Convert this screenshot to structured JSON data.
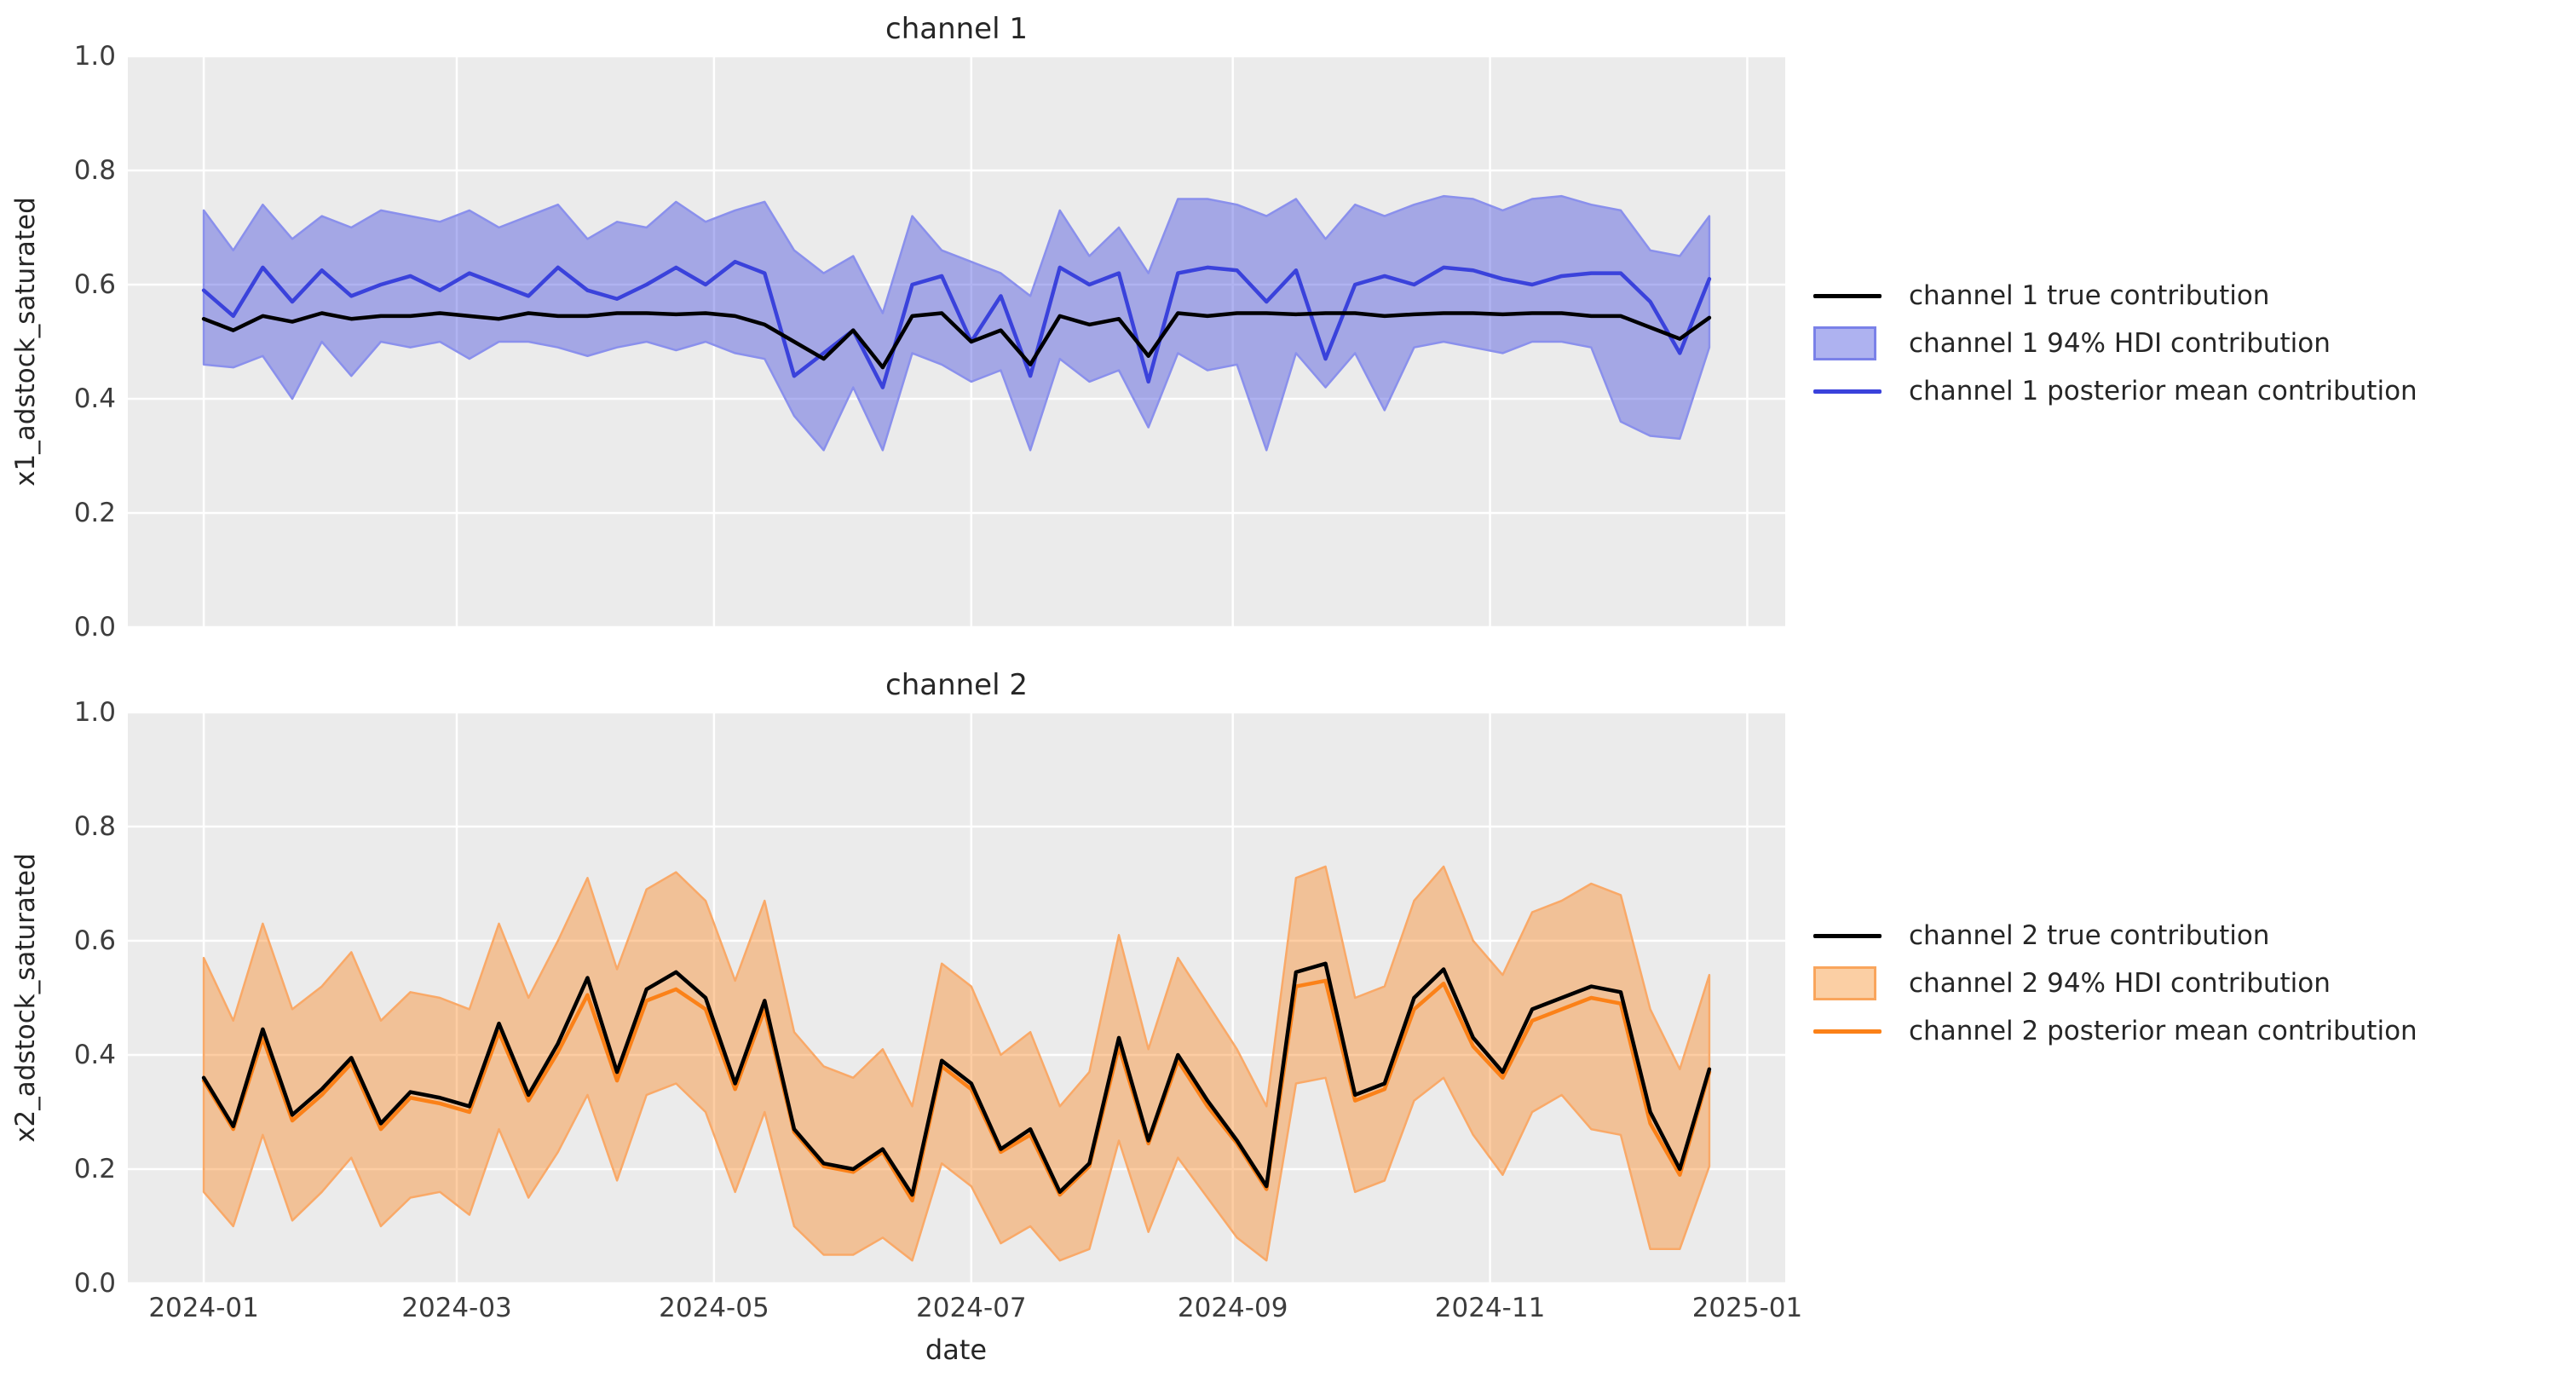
{
  "figure": {
    "background": "#ffffff",
    "panel_background": "#ebebeb",
    "grid_color": "#ffffff",
    "tick_color": "#3d3d3d",
    "text_color": "#262626"
  },
  "xaxis": {
    "label": "date",
    "tick_labels": [
      "2024-01",
      "2024-03",
      "2024-05",
      "2024-07",
      "2024-09",
      "2024-11",
      "2025-01"
    ],
    "tick_days": [
      0,
      60,
      121,
      182,
      244,
      305,
      366
    ],
    "xlim_days": [
      -18,
      375
    ]
  },
  "chart_data": [
    {
      "type": "line",
      "title": "channel 1",
      "ylabel": "x1_adstock_saturated",
      "xlabel": "",
      "ylim": [
        0,
        1
      ],
      "grid": true,
      "legend_position": "right",
      "yticks": {
        "values": [
          0.0,
          0.2,
          0.4,
          0.6,
          0.8,
          1.0
        ],
        "labels": [
          "0.0",
          "0.2",
          "0.4",
          "0.6",
          "0.8",
          "1.0"
        ]
      },
      "x_start_date": "2024-01-01",
      "x_interval_days": 7,
      "n_points": 52,
      "legend": [
        {
          "label": "channel 1 true contribution",
          "marker": "line",
          "color": "#000000"
        },
        {
          "label": "channel 1 94% HDI contribution",
          "marker": "patch",
          "color": "#aeb2f0"
        },
        {
          "label": "channel 1 posterior mean contribution",
          "marker": "line",
          "color": "#3a42db"
        }
      ],
      "colors": {
        "true_line": "#000000",
        "mean_line": "#3a42db",
        "band_fill": "rgba(58,66,219,0.40)",
        "band_edge": "#8a90ec",
        "legend_patch_fill": "#aeb2f0",
        "legend_patch_border": "#7a81e8"
      },
      "series": [
        {
          "name": "true",
          "values": [
            0.54,
            0.52,
            0.545,
            0.535,
            0.55,
            0.54,
            0.545,
            0.545,
            0.55,
            0.545,
            0.54,
            0.55,
            0.545,
            0.545,
            0.55,
            0.55,
            0.548,
            0.55,
            0.545,
            0.53,
            0.5,
            0.47,
            0.52,
            0.455,
            0.545,
            0.55,
            0.5,
            0.52,
            0.46,
            0.545,
            0.53,
            0.54,
            0.475,
            0.55,
            0.545,
            0.55,
            0.55,
            0.548,
            0.55,
            0.55,
            0.545,
            0.548,
            0.55,
            0.55,
            0.548,
            0.55,
            0.55,
            0.545,
            0.545,
            0.525,
            0.505,
            0.542
          ]
        },
        {
          "name": "posterior_mean",
          "values": [
            0.59,
            0.545,
            0.63,
            0.57,
            0.625,
            0.58,
            0.6,
            0.615,
            0.59,
            0.62,
            0.6,
            0.58,
            0.63,
            0.59,
            0.575,
            0.6,
            0.63,
            0.6,
            0.64,
            0.62,
            0.44,
            0.48,
            0.52,
            0.42,
            0.6,
            0.615,
            0.5,
            0.58,
            0.44,
            0.63,
            0.6,
            0.62,
            0.43,
            0.62,
            0.63,
            0.625,
            0.57,
            0.625,
            0.47,
            0.6,
            0.615,
            0.6,
            0.63,
            0.625,
            0.61,
            0.6,
            0.615,
            0.62,
            0.62,
            0.57,
            0.48,
            0.61
          ]
        },
        {
          "name": "hdi_94_upper",
          "values": [
            0.73,
            0.66,
            0.74,
            0.68,
            0.72,
            0.7,
            0.73,
            0.72,
            0.71,
            0.73,
            0.7,
            0.72,
            0.74,
            0.68,
            0.71,
            0.7,
            0.745,
            0.71,
            0.73,
            0.745,
            0.66,
            0.62,
            0.65,
            0.55,
            0.72,
            0.66,
            0.64,
            0.62,
            0.58,
            0.73,
            0.65,
            0.7,
            0.62,
            0.75,
            0.75,
            0.74,
            0.72,
            0.75,
            0.68,
            0.74,
            0.72,
            0.74,
            0.755,
            0.75,
            0.73,
            0.75,
            0.755,
            0.74,
            0.73,
            0.66,
            0.65,
            0.72
          ]
        },
        {
          "name": "hdi_94_lower",
          "values": [
            0.46,
            0.455,
            0.475,
            0.4,
            0.5,
            0.44,
            0.5,
            0.49,
            0.5,
            0.47,
            0.5,
            0.5,
            0.49,
            0.475,
            0.49,
            0.5,
            0.485,
            0.5,
            0.48,
            0.47,
            0.37,
            0.31,
            0.42,
            0.31,
            0.48,
            0.46,
            0.43,
            0.45,
            0.31,
            0.47,
            0.43,
            0.45,
            0.35,
            0.48,
            0.45,
            0.46,
            0.31,
            0.48,
            0.42,
            0.48,
            0.38,
            0.49,
            0.5,
            0.49,
            0.48,
            0.5,
            0.5,
            0.49,
            0.36,
            0.335,
            0.33,
            0.49
          ]
        }
      ]
    },
    {
      "type": "line",
      "title": "channel 2",
      "ylabel": "x2_adstock_saturated",
      "xlabel": "date",
      "ylim": [
        0,
        1
      ],
      "grid": true,
      "legend_position": "right",
      "yticks": {
        "values": [
          0.0,
          0.2,
          0.4,
          0.6,
          0.8,
          1.0
        ],
        "labels": [
          "0.0",
          "0.2",
          "0.4",
          "0.6",
          "0.8",
          "1.0"
        ]
      },
      "x_start_date": "2024-01-01",
      "x_interval_days": 7,
      "n_points": 52,
      "legend": [
        {
          "label": "channel 2 true contribution",
          "marker": "line",
          "color": "#000000"
        },
        {
          "label": "channel 2 94% HDI contribution",
          "marker": "patch",
          "color": "#fbcfa4"
        },
        {
          "label": "channel 2 posterior mean contribution",
          "marker": "line",
          "color": "#fb8118"
        }
      ],
      "colors": {
        "true_line": "#000000",
        "mean_line": "#fb8118",
        "band_fill": "rgba(251,129,24,0.40)",
        "band_edge": "#f9a968",
        "legend_patch_fill": "#fbcfa4",
        "legend_patch_border": "#f9a55c"
      },
      "series": [
        {
          "name": "true",
          "values": [
            0.36,
            0.275,
            0.445,
            0.295,
            0.34,
            0.395,
            0.28,
            0.335,
            0.325,
            0.31,
            0.455,
            0.33,
            0.42,
            0.535,
            0.37,
            0.515,
            0.545,
            0.5,
            0.35,
            0.495,
            0.27,
            0.21,
            0.2,
            0.235,
            0.155,
            0.39,
            0.35,
            0.235,
            0.27,
            0.16,
            0.21,
            0.43,
            0.25,
            0.4,
            0.32,
            0.25,
            0.17,
            0.545,
            0.56,
            0.33,
            0.35,
            0.5,
            0.55,
            0.43,
            0.37,
            0.48,
            0.5,
            0.52,
            0.51,
            0.3,
            0.2,
            0.375
          ]
        },
        {
          "name": "posterior_mean",
          "values": [
            0.355,
            0.27,
            0.43,
            0.285,
            0.33,
            0.385,
            0.27,
            0.325,
            0.315,
            0.3,
            0.44,
            0.32,
            0.405,
            0.505,
            0.355,
            0.495,
            0.515,
            0.48,
            0.34,
            0.48,
            0.265,
            0.205,
            0.195,
            0.23,
            0.145,
            0.38,
            0.34,
            0.23,
            0.26,
            0.155,
            0.205,
            0.415,
            0.245,
            0.39,
            0.31,
            0.245,
            0.165,
            0.52,
            0.53,
            0.32,
            0.34,
            0.48,
            0.525,
            0.415,
            0.36,
            0.46,
            0.48,
            0.5,
            0.49,
            0.28,
            0.19,
            0.37
          ]
        },
        {
          "name": "hdi_94_upper",
          "values": [
            0.57,
            0.46,
            0.63,
            0.48,
            0.52,
            0.58,
            0.46,
            0.51,
            0.5,
            0.48,
            0.63,
            0.5,
            0.6,
            0.71,
            0.55,
            0.69,
            0.72,
            0.67,
            0.53,
            0.67,
            0.44,
            0.38,
            0.36,
            0.41,
            0.31,
            0.56,
            0.52,
            0.4,
            0.44,
            0.31,
            0.37,
            0.61,
            0.41,
            0.57,
            0.49,
            0.41,
            0.31,
            0.71,
            0.73,
            0.5,
            0.52,
            0.67,
            0.73,
            0.6,
            0.54,
            0.65,
            0.67,
            0.7,
            0.68,
            0.48,
            0.375,
            0.54
          ]
        },
        {
          "name": "hdi_94_lower",
          "values": [
            0.16,
            0.1,
            0.26,
            0.11,
            0.16,
            0.22,
            0.1,
            0.15,
            0.16,
            0.12,
            0.27,
            0.15,
            0.23,
            0.33,
            0.18,
            0.33,
            0.35,
            0.3,
            0.16,
            0.3,
            0.1,
            0.05,
            0.05,
            0.08,
            0.04,
            0.21,
            0.17,
            0.07,
            0.1,
            0.04,
            0.06,
            0.25,
            0.09,
            0.22,
            0.15,
            0.08,
            0.04,
            0.35,
            0.36,
            0.16,
            0.18,
            0.32,
            0.36,
            0.26,
            0.19,
            0.3,
            0.33,
            0.27,
            0.26,
            0.06,
            0.06,
            0.205
          ]
        }
      ]
    }
  ]
}
